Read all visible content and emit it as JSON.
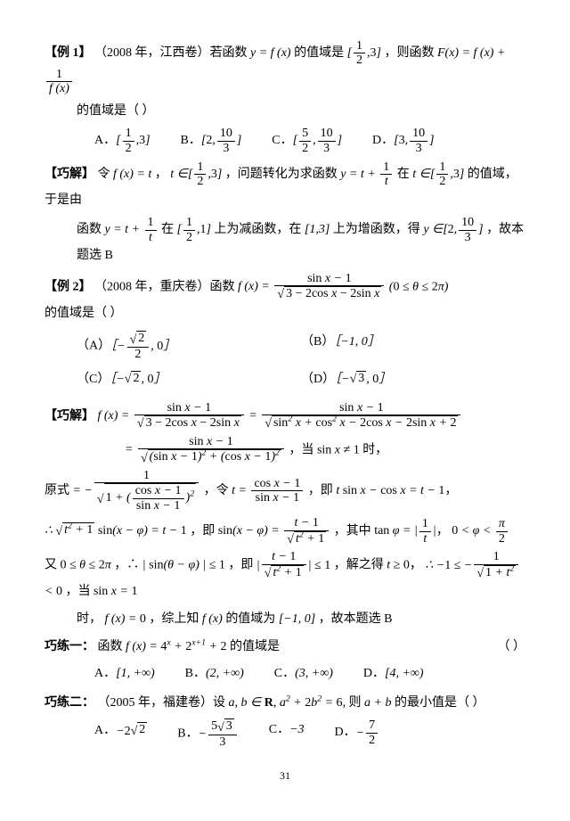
{
  "page_number": "31",
  "ex1": {
    "header": "【例 1】",
    "source": "（2008 年，江西卷）若函数",
    "fn_eq": "y = f (x)",
    "mid": "的值域是",
    "domain_interval": "[½, 3]",
    "then": "，则函数",
    "F_eq_prefix": "F(x) = f (x) + ",
    "q_tail": "的值域是（  ）",
    "A_label": "A．",
    "A_val": "[½, 3]",
    "B_label": "B．",
    "B_val": "[2, 10/3]",
    "C_label": "C．",
    "C_val": "[5/2, 10/3]",
    "D_label": "D．",
    "D_val": "[3, 10/3]"
  },
  "sol1": {
    "header": "【巧解】",
    "l1a": "令",
    "l1b": "f (x) = t",
    "l1c": "，",
    "l1d": "t ∈ [½, 3]",
    "l1e": "，问题转化为求函数",
    "l1f": "y = t + 1/t",
    "l1g": "在",
    "l1h": "t ∈ [½, 3]",
    "l1i": "的值域，于是由",
    "l2a": "函数",
    "l2b": "y = t + 1/t",
    "l2c": "在",
    "l2d": "[½, 1]",
    "l2e": "上为减函数，在",
    "l2f": "[1,3]",
    "l2g": "上为增函数，得",
    "l2h": "y ∈ [2, 10/3]",
    "l2i": "，故本题选 B"
  },
  "ex2": {
    "header": "【例 2】",
    "source": "（2008 年，重庆卷）函数",
    "cond": "(0 ≤ θ ≤ 2π)",
    "tail": "的值域是（  ）",
    "A_label": "（A）",
    "B_label": "（B）",
    "C_label": "（C）",
    "D_label": "（D）",
    "B_val": "［−1, 0］"
  },
  "sol2": {
    "header": "【巧解】",
    "when": "，当",
    "sinx_neq": "sin x ≠ 1",
    "time": "时，",
    "orig": "原式",
    "let": "，令",
    "then": "，即",
    "where": "，其中",
    "also": "又",
    "theta_range": "0 ≤ θ ≤ 2π",
    "so": "，∴",
    "sin_le1_a": "| sin(θ − φ) | ≤ 1",
    "jie": "，即",
    "jiede": "，解之得",
    "t_ge0": "t ≥ 0",
    "dang": "，当",
    "sinx_eq1": "sin x = 1",
    "shi2": "时，",
    "f0": "f (x) = 0",
    "zong": "，综上知",
    "fx": "f (x)",
    "range_is": "的值域为",
    "range_val": "[−1, 0]",
    "ans": "，故本题选 B"
  },
  "p1": {
    "header": "巧练一：",
    "q1": "函数",
    "fn": "f (x) = 4ˣ + 2ˣ⁺¹ + 2",
    "q2": "的值域是",
    "blank": "（    ）",
    "A_label": "A．",
    "A_val": "[1, +∞)",
    "B_label": "B．",
    "B_val": "(2, +∞)",
    "C_label": "C．",
    "C_val": "(3, +∞)",
    "D_label": "D．",
    "D_val": "[4, +∞)"
  },
  "p2": {
    "header": "巧练二：",
    "src": "（2005 年，福建卷）设",
    "cond": "a, b ∈ R, a² + 2b² = 6, 则 a + b",
    "q": "的最小值是（  ）",
    "A_label": "A．",
    "B_label": "B．",
    "C_label": "C．",
    "C_val": "−3",
    "D_label": "D．"
  }
}
